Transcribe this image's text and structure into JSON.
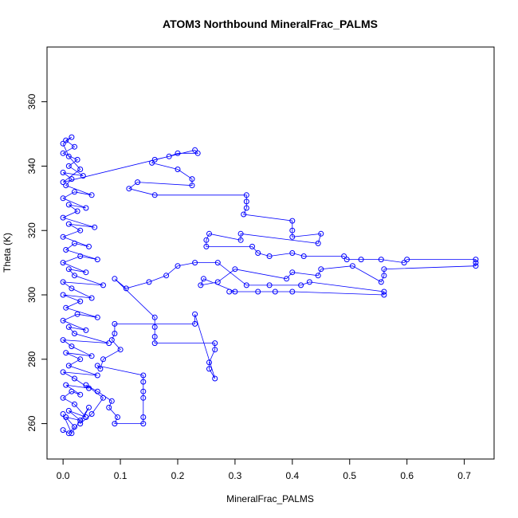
{
  "chart_data": {
    "type": "scatter",
    "title": "ATOM3 Northbound MineralFrac_PALMS",
    "xlabel": "MineralFrac_PALMS",
    "ylabel": "Theta (K)",
    "xlim": [
      -0.028,
      0.752
    ],
    "ylim": [
      249,
      377
    ],
    "xticks": [
      "0.0",
      "0.1",
      "0.2",
      "0.3",
      "0.4",
      "0.5",
      "0.6",
      "0.7"
    ],
    "yticks": [
      "260",
      "280",
      "300",
      "320",
      "340",
      "360"
    ],
    "grid": false,
    "legend": "none",
    "series": [
      {
        "color": "#0000ff",
        "marker": "open-circle",
        "connected": true,
        "points": [
          [
            0.0,
            258
          ],
          [
            0.01,
            257
          ],
          [
            0.02,
            259
          ],
          [
            0.005,
            262
          ],
          [
            0.03,
            261
          ],
          [
            0.01,
            264
          ],
          [
            0.04,
            262
          ],
          [
            0.02,
            266
          ],
          [
            0.0,
            268
          ],
          [
            0.015,
            270
          ],
          [
            0.03,
            269
          ],
          [
            0.005,
            272
          ],
          [
            0.045,
            271
          ],
          [
            0.02,
            274
          ],
          [
            0.0,
            276
          ],
          [
            0.06,
            275
          ],
          [
            0.01,
            278
          ],
          [
            0.03,
            280
          ],
          [
            0.005,
            282
          ],
          [
            0.05,
            281
          ],
          [
            0.015,
            284
          ],
          [
            0.0,
            286
          ],
          [
            0.08,
            285
          ],
          [
            0.02,
            288
          ],
          [
            0.01,
            290
          ],
          [
            0.04,
            289
          ],
          [
            0.0,
            292
          ],
          [
            0.025,
            294
          ],
          [
            0.06,
            293
          ],
          [
            0.005,
            296
          ],
          [
            0.03,
            298
          ],
          [
            0.0,
            300
          ],
          [
            0.05,
            299
          ],
          [
            0.015,
            302
          ],
          [
            0.0,
            304
          ],
          [
            0.07,
            303
          ],
          [
            0.02,
            306
          ],
          [
            0.01,
            308
          ],
          [
            0.04,
            307
          ],
          [
            0.0,
            310
          ],
          [
            0.03,
            312
          ],
          [
            0.06,
            311
          ],
          [
            0.005,
            314
          ],
          [
            0.02,
            316
          ],
          [
            0.045,
            315
          ],
          [
            0.0,
            318
          ],
          [
            0.03,
            320
          ],
          [
            0.01,
            322
          ],
          [
            0.055,
            321
          ],
          [
            0.0,
            324
          ],
          [
            0.025,
            326
          ],
          [
            0.01,
            328
          ],
          [
            0.04,
            327
          ],
          [
            0.0,
            330
          ],
          [
            0.02,
            332
          ],
          [
            0.05,
            331
          ],
          [
            0.005,
            334
          ],
          [
            0.015,
            336
          ],
          [
            0.0,
            338
          ],
          [
            0.035,
            337
          ],
          [
            0.01,
            340
          ],
          [
            0.025,
            342
          ],
          [
            0.0,
            344
          ],
          [
            0.02,
            346
          ],
          [
            0.005,
            348
          ],
          [
            0.015,
            349
          ],
          [
            0.0,
            347
          ],
          [
            0.01,
            343
          ],
          [
            0.03,
            339
          ],
          [
            0.0,
            335
          ],
          [
            0.23,
            345
          ],
          [
            0.235,
            344
          ],
          [
            0.2,
            344
          ],
          [
            0.185,
            343
          ],
          [
            0.16,
            342
          ],
          [
            0.155,
            341
          ],
          [
            0.2,
            339
          ],
          [
            0.225,
            336
          ],
          [
            0.225,
            334
          ],
          [
            0.13,
            335
          ],
          [
            0.115,
            333
          ],
          [
            0.16,
            331
          ],
          [
            0.32,
            331
          ],
          [
            0.32,
            329
          ],
          [
            0.32,
            327
          ],
          [
            0.315,
            325
          ],
          [
            0.4,
            323
          ],
          [
            0.4,
            320
          ],
          [
            0.4,
            318
          ],
          [
            0.45,
            319
          ],
          [
            0.445,
            316
          ],
          [
            0.31,
            319
          ],
          [
            0.31,
            317
          ],
          [
            0.255,
            319
          ],
          [
            0.25,
            317
          ],
          [
            0.25,
            315
          ],
          [
            0.33,
            315
          ],
          [
            0.34,
            313
          ],
          [
            0.36,
            312
          ],
          [
            0.4,
            313
          ],
          [
            0.42,
            312
          ],
          [
            0.49,
            312
          ],
          [
            0.495,
            311
          ],
          [
            0.52,
            311
          ],
          [
            0.555,
            311
          ],
          [
            0.595,
            310
          ],
          [
            0.6,
            311
          ],
          [
            0.72,
            311
          ],
          [
            0.72,
            310
          ],
          [
            0.72,
            309
          ],
          [
            0.56,
            308
          ],
          [
            0.56,
            306
          ],
          [
            0.555,
            304
          ],
          [
            0.505,
            309
          ],
          [
            0.45,
            308
          ],
          [
            0.445,
            306
          ],
          [
            0.4,
            307
          ],
          [
            0.39,
            305
          ],
          [
            0.3,
            308
          ],
          [
            0.27,
            304
          ],
          [
            0.24,
            303
          ],
          [
            0.245,
            305
          ],
          [
            0.3,
            301
          ],
          [
            0.29,
            301
          ],
          [
            0.34,
            301
          ],
          [
            0.37,
            301
          ],
          [
            0.4,
            301
          ],
          [
            0.56,
            300
          ],
          [
            0.56,
            301
          ],
          [
            0.43,
            304
          ],
          [
            0.415,
            303
          ],
          [
            0.36,
            303
          ],
          [
            0.32,
            303
          ],
          [
            0.27,
            310
          ],
          [
            0.23,
            310
          ],
          [
            0.2,
            309
          ],
          [
            0.18,
            306
          ],
          [
            0.15,
            304
          ],
          [
            0.11,
            302
          ],
          [
            0.09,
            305
          ],
          [
            0.16,
            293
          ],
          [
            0.16,
            290
          ],
          [
            0.16,
            287
          ],
          [
            0.16,
            285
          ],
          [
            0.265,
            285
          ],
          [
            0.265,
            283
          ],
          [
            0.255,
            279
          ],
          [
            0.255,
            277
          ],
          [
            0.265,
            274
          ],
          [
            0.23,
            294
          ],
          [
            0.23,
            291
          ],
          [
            0.09,
            291
          ],
          [
            0.09,
            288
          ],
          [
            0.085,
            286
          ],
          [
            0.1,
            283
          ],
          [
            0.07,
            280
          ],
          [
            0.065,
            277
          ],
          [
            0.06,
            278
          ],
          [
            0.14,
            275
          ],
          [
            0.14,
            273
          ],
          [
            0.14,
            270
          ],
          [
            0.14,
            268
          ],
          [
            0.14,
            262
          ],
          [
            0.14,
            260
          ],
          [
            0.09,
            260
          ],
          [
            0.095,
            262
          ],
          [
            0.08,
            265
          ],
          [
            0.085,
            267
          ],
          [
            0.06,
            270
          ],
          [
            0.04,
            272
          ],
          [
            0.07,
            268
          ],
          [
            0.05,
            263
          ],
          [
            0.03,
            260
          ],
          [
            0.045,
            265
          ],
          [
            0.015,
            257
          ],
          [
            0.0,
            263
          ]
        ]
      }
    ]
  }
}
